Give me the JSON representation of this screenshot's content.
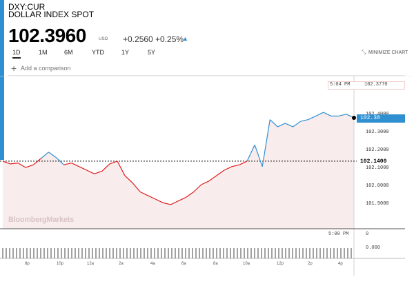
{
  "header": {
    "ticker": "DXY:CUR",
    "name": "DOLLAR INDEX SPOT",
    "price": "102.3960",
    "currency": "USD",
    "change": "+0.2560 +0.25%",
    "arrow": "▲"
  },
  "timeframes": [
    {
      "label": "1D",
      "active": true
    },
    {
      "label": "1M",
      "active": false
    },
    {
      "label": "6M",
      "active": false
    },
    {
      "label": "YTD",
      "active": false
    },
    {
      "label": "1Y",
      "active": false
    },
    {
      "label": "5Y",
      "active": false
    }
  ],
  "minimize_label": "MINIMIZE CHART",
  "compare": {
    "placeholder": "Add a comparison"
  },
  "watermark": "BloombergMarkets",
  "crosshair": {
    "time": "5:04 PM",
    "value": "102.3770"
  },
  "last_value_label": "102.38",
  "open_value_label": "102.1400",
  "volume": {
    "time": "5:00 PM",
    "top_value": "0",
    "bottom_value": "0.000"
  },
  "colors": {
    "up": "#2f8fd0",
    "down": "#e0191b",
    "shade": "#f9ecec"
  },
  "chart_data": {
    "type": "line",
    "title": "DXY:CUR",
    "ylim": [
      101.85,
      102.46
    ],
    "y_ticks": [
      "102.4000",
      "102.3000",
      "102.2000",
      "102.1000",
      "102.0000",
      "101.9000"
    ],
    "x_ticks": [
      "8p",
      "10p",
      "12a",
      "2a",
      "4a",
      "6a",
      "8a",
      "10a",
      "12p",
      "2p",
      "4p"
    ],
    "open": 102.14,
    "series": [
      {
        "x": [
          "6:00p",
          "6:30p",
          "7:00p",
          "7:30p",
          "8:00p",
          "8:30p",
          "9:00p",
          "9:30p",
          "10:00p",
          "10:30p",
          "11:00p",
          "11:30p",
          "12:00a",
          "12:30a",
          "1:00a",
          "1:30a",
          "2:00a",
          "2:30a",
          "3:00a",
          "3:30a",
          "4:00a",
          "4:30a",
          "5:00a",
          "5:30a",
          "6:00a",
          "6:30a",
          "7:00a",
          "7:30a",
          "8:00a",
          "8:30a",
          "9:00a",
          "9:30a",
          "10:00a",
          "10:30a",
          "11:00a",
          "11:30a",
          "12:00p",
          "12:30p",
          "1:00p",
          "1:30p",
          "2:00p",
          "2:30p",
          "3:00p",
          "3:30p",
          "4:00p",
          "4:30p",
          "5:04p"
        ],
        "values": [
          102.14,
          102.125,
          102.13,
          102.105,
          102.12,
          102.155,
          102.19,
          102.16,
          102.12,
          102.13,
          102.11,
          102.09,
          102.07,
          102.085,
          102.125,
          102.14,
          102.06,
          102.02,
          101.97,
          101.95,
          101.93,
          101.91,
          101.9,
          101.92,
          101.94,
          101.97,
          102.01,
          102.03,
          102.06,
          102.09,
          102.11,
          102.12,
          102.14,
          102.23,
          102.11,
          102.37,
          102.33,
          102.35,
          102.33,
          102.36,
          102.37,
          102.39,
          102.41,
          102.39,
          102.39,
          102.4,
          102.38
        ]
      }
    ]
  }
}
